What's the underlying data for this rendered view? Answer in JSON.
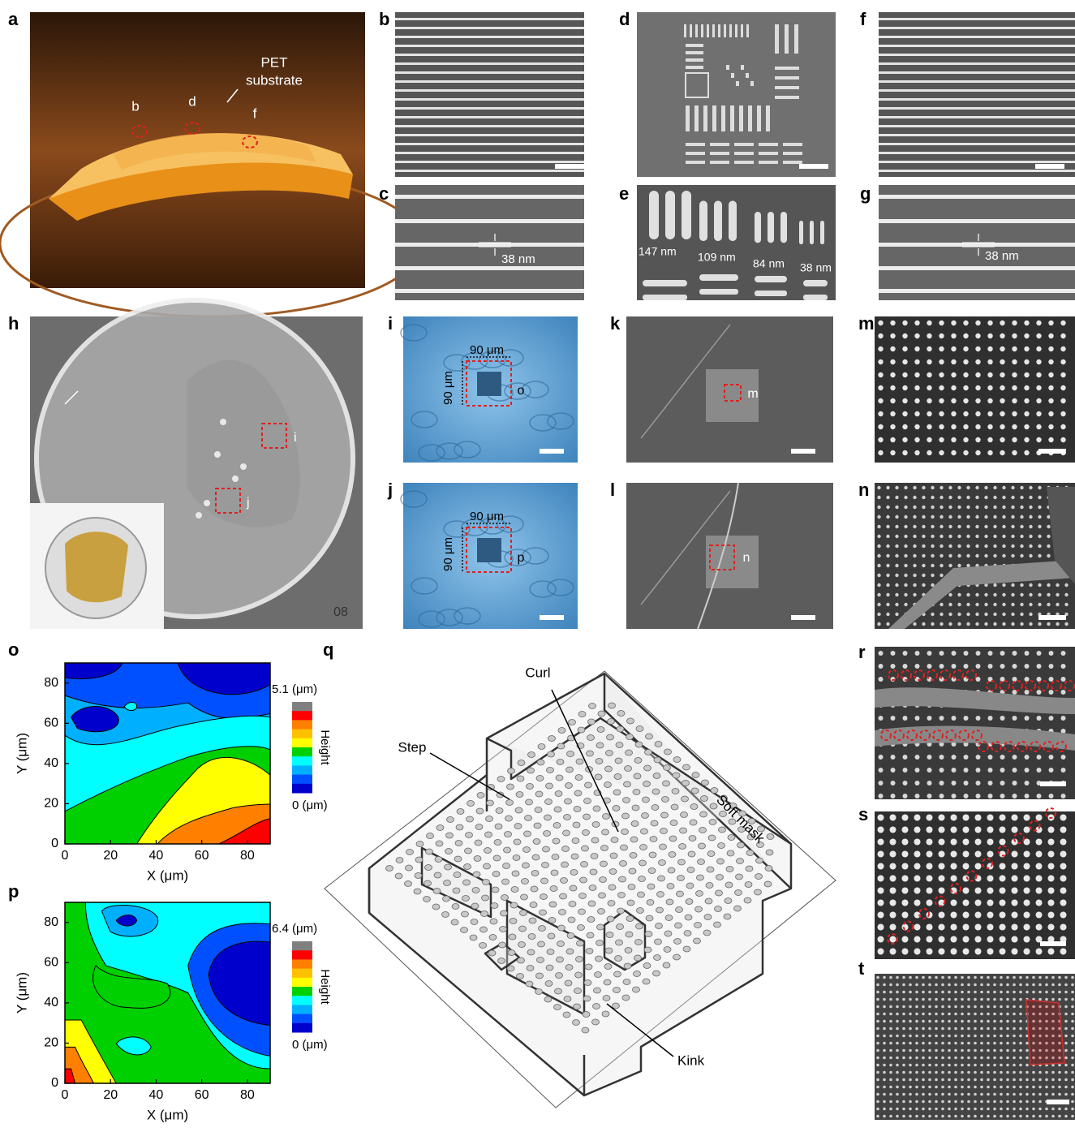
{
  "panel_labels": [
    "a",
    "b",
    "c",
    "d",
    "e",
    "f",
    "g",
    "h",
    "i",
    "j",
    "k",
    "l",
    "m",
    "n",
    "o",
    "p",
    "q",
    "r",
    "s",
    "t"
  ],
  "photo_a": {
    "site_labels": [
      "b",
      "d",
      "f"
    ],
    "substrate_label": [
      "PET",
      "substrate"
    ]
  },
  "sem_c": {
    "width": "38 nm"
  },
  "sem_e": {
    "widths": [
      "147 nm",
      "109 nm",
      "84 nm",
      "38 nm"
    ]
  },
  "sem_g": {
    "width": "38 nm"
  },
  "photo_h": {
    "regions": [
      "i",
      "j"
    ],
    "stamp": "08"
  },
  "optical_i": {
    "width": "90 μm",
    "height": "90 μm",
    "region": "o"
  },
  "optical_j": {
    "width": "90 μm",
    "height": "90 μm",
    "region": "p"
  },
  "sem_k": {
    "region": "m"
  },
  "sem_l": {
    "region": "n"
  },
  "plots": [
    {
      "xlabel": "X (μm)",
      "ylabel": "Y (μm)",
      "xlim": [
        0,
        90
      ],
      "ylim": [
        0,
        90
      ],
      "xticks": [
        0,
        20,
        40,
        60,
        80
      ],
      "yticks": [
        0,
        20,
        40,
        60,
        80
      ],
      "colorbar": {
        "max_label": "5.1 (μm)",
        "min_label": "0 (μm)",
        "label": "Height",
        "colors": [
          "#808080",
          "#ff0000",
          "#ff8000",
          "#ffc000",
          "#ffff00",
          "#00d000",
          "#00ffff",
          "#00b0ff",
          "#0050ff",
          "#0000cc"
        ]
      }
    },
    {
      "xlabel": "X (μm)",
      "ylabel": "Y (μm)",
      "xlim": [
        0,
        90
      ],
      "ylim": [
        0,
        90
      ],
      "xticks": [
        0,
        20,
        40,
        60,
        80
      ],
      "yticks": [
        0,
        20,
        40,
        60,
        80
      ],
      "colorbar": {
        "max_label": "6.4 (μm)",
        "min_label": "0 (μm)",
        "label": "Height",
        "colors": [
          "#808080",
          "#ff0000",
          "#ff8000",
          "#ffc000",
          "#ffff00",
          "#00d000",
          "#00ffff",
          "#00b0ff",
          "#0050ff",
          "#0000cc"
        ]
      }
    }
  ],
  "diagram_q": {
    "labels": {
      "curl": "Curl",
      "step": "Step",
      "soft_mask": "Soft mask",
      "kink": "Kink"
    }
  }
}
